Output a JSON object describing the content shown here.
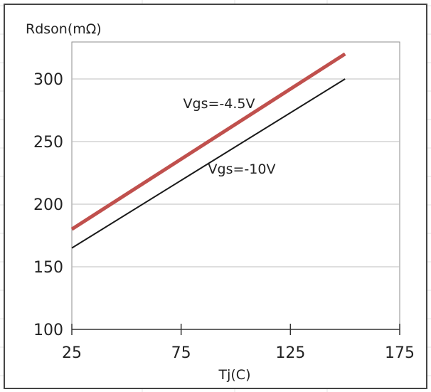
{
  "chart_data": {
    "type": "line",
    "title": "",
    "xlabel": "Tj(C)",
    "ylabel": "Rdson(mΩ)",
    "xlim": [
      25,
      175
    ],
    "ylim": [
      100,
      320
    ],
    "xticks": [
      25,
      75,
      125,
      175
    ],
    "yticks": [
      100,
      150,
      200,
      250,
      300
    ],
    "grid": "horizontal",
    "series": [
      {
        "name": "Vgs=-4.5V",
        "x": [
          25,
          150
        ],
        "values": [
          180,
          320
        ],
        "color": "#c0504d"
      },
      {
        "name": "Vgs=-10V",
        "x": [
          25,
          150
        ],
        "values": [
          165,
          300
        ],
        "color": "#1a1a1a"
      }
    ]
  }
}
